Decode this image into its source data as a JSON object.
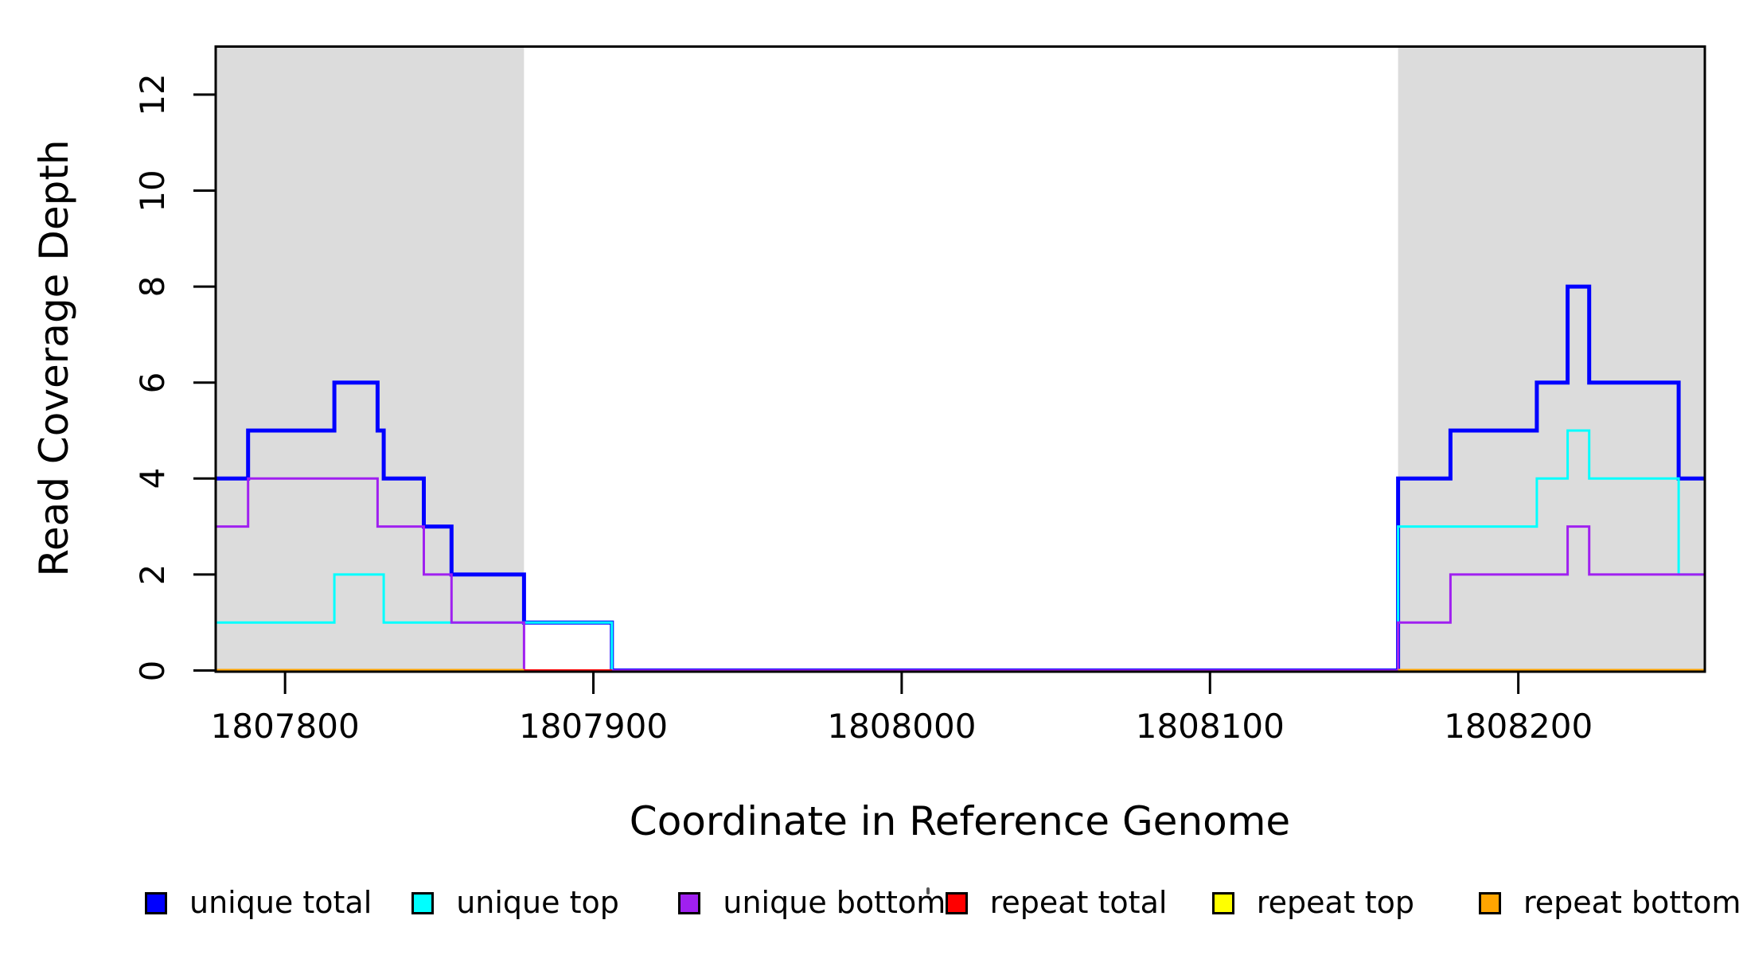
{
  "figure": {
    "background": "#FFFFFF"
  },
  "chart_data": {
    "type": "line",
    "subtype": "step-coverage",
    "title": "",
    "xlabel": "Coordinate in Reference Genome",
    "ylabel": "Read Coverage Depth",
    "xlim": [
      1807777.5,
      1808260.5
    ],
    "ylim": [
      0,
      13
    ],
    "x_ticks": [
      1807800,
      1807900,
      1808000,
      1808100,
      1808200
    ],
    "y_ticks": [
      0,
      2,
      4,
      6,
      8,
      10,
      12
    ],
    "grid": false,
    "legend_position": "bottom",
    "shaded_regions": [
      {
        "name": "repeat-region-left",
        "x0": 1807777.5,
        "x1": 1807877.5,
        "color": "#DCDCDC"
      },
      {
        "name": "repeat-region-right",
        "x0": 1808161,
        "x1": 1808260.5,
        "color": "#DCDCDC"
      }
    ],
    "series": [
      {
        "name": "unique total",
        "color": "#0000FF",
        "width": 5,
        "segments": [
          [
            [
              1807777.5,
              4
            ],
            [
              1807788,
              5
            ],
            [
              1807816,
              6
            ],
            [
              1807830,
              5
            ],
            [
              1807832,
              4
            ],
            [
              1807845,
              3
            ],
            [
              1807854,
              2
            ],
            [
              1807877.5,
              1
            ],
            [
              1807906,
              0
            ],
            [
              1808161,
              4
            ],
            [
              1808178,
              5
            ],
            [
              1808206,
              6
            ],
            [
              1808216,
              8
            ],
            [
              1808223,
              6
            ],
            [
              1808252,
              4
            ],
            [
              1808260.5,
              4
            ]
          ]
        ]
      },
      {
        "name": "unique top",
        "color": "#00FFFF",
        "width": 3,
        "segments": [
          [
            [
              1807777.5,
              1
            ],
            [
              1807816,
              2
            ],
            [
              1807832,
              1
            ],
            [
              1807906,
              0
            ],
            [
              1808161,
              3
            ],
            [
              1808206,
              4
            ],
            [
              1808216,
              5
            ],
            [
              1808223,
              4
            ],
            [
              1808252,
              2
            ],
            [
              1808260.5,
              2
            ]
          ]
        ]
      },
      {
        "name": "unique bottom",
        "color": "#A020F0",
        "width": 3,
        "segments": [
          [
            [
              1807777.5,
              3
            ],
            [
              1807788,
              4
            ],
            [
              1807830,
              3
            ],
            [
              1807845,
              2
            ],
            [
              1807854,
              1
            ],
            [
              1807877.5,
              0
            ],
            [
              1808161,
              1
            ],
            [
              1808178,
              2
            ],
            [
              1808216,
              3
            ],
            [
              1808223,
              2
            ],
            [
              1808260.5,
              2
            ]
          ]
        ]
      },
      {
        "name": "repeat total",
        "color": "#FF0000",
        "width": 3,
        "segments": [
          [
            [
              1807777.5,
              0
            ],
            [
              1807906,
              0
            ]
          ]
        ]
      },
      {
        "name": "repeat top",
        "color": "#FFFF00",
        "width": 3,
        "segments": [
          [
            [
              1807777.5,
              0
            ],
            [
              1807877.5,
              0
            ]
          ],
          [
            [
              1808161,
              0
            ],
            [
              1808260.5,
              0
            ]
          ]
        ]
      },
      {
        "name": "repeat bottom",
        "color": "#FFA500",
        "width": 4,
        "segments": [
          [
            [
              1807777.5,
              0
            ],
            [
              1807877.5,
              0
            ]
          ],
          [
            [
              1808161,
              0
            ],
            [
              1808260.5,
              0
            ]
          ]
        ]
      }
    ],
    "legend": [
      {
        "label": "unique total",
        "color": "#0000FF"
      },
      {
        "label": "unique top",
        "color": "#00FFFF"
      },
      {
        "label": "unique bottom",
        "color": "#A020F0"
      },
      {
        "label": "repeat total",
        "color": "#FF0000"
      },
      {
        "label": "repeat top",
        "color": "#FFFF00"
      },
      {
        "label": "repeat bottom",
        "color": "#FFA500"
      }
    ],
    "axis_color": "#000000",
    "box": true
  }
}
